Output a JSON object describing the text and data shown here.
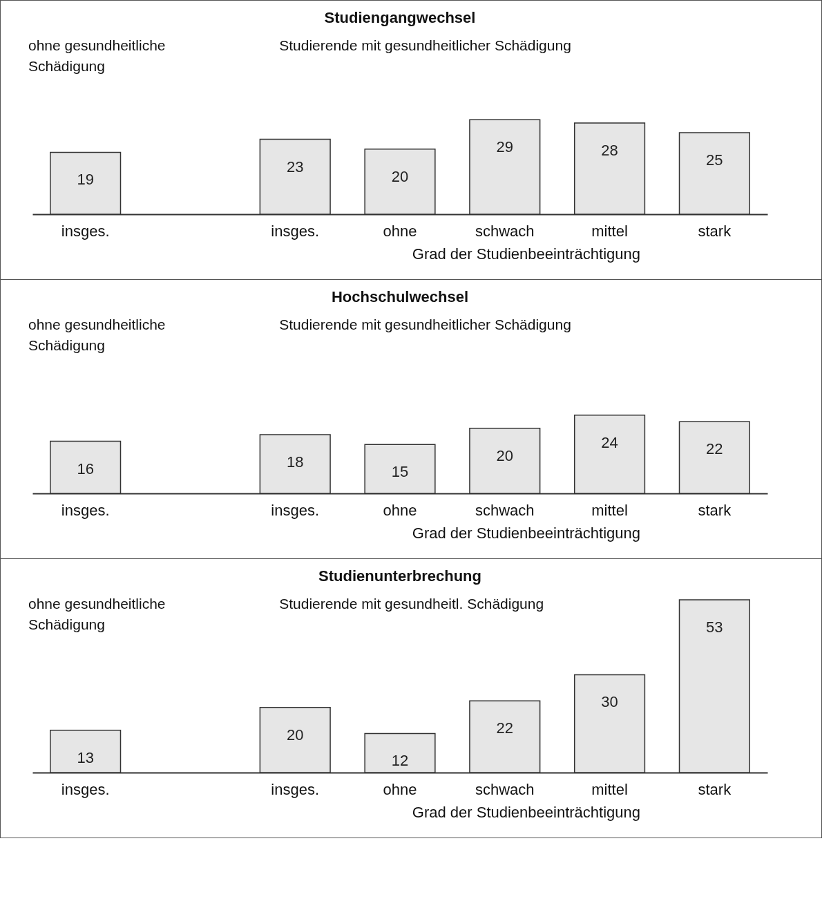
{
  "chart_data": [
    {
      "type": "bar",
      "title": "Studiengangwechsel",
      "xlabel": "Grad der Studienbeeinträchtigung",
      "annotations": [
        "ohne gesundheitliche\nSchädigung",
        "Studierende mit gesundheitlicher Schädigung"
      ],
      "categories": [
        "insges.",
        null,
        "insges.",
        "ohne",
        "schwach",
        "mittel",
        "stark"
      ],
      "values": [
        19,
        null,
        23,
        20,
        29,
        28,
        25
      ],
      "color": "#e6e6e6",
      "data_labels": true,
      "grid": false
    },
    {
      "type": "bar",
      "title": "Hochschulwechsel",
      "xlabel": "Grad der Studienbeeinträchtigung",
      "annotations": [
        "ohne gesundheitliche\nSchädigung",
        "Studierende mit gesundheitlicher Schädigung"
      ],
      "categories": [
        "insges.",
        null,
        "insges.",
        "ohne",
        "schwach",
        "mittel",
        "stark"
      ],
      "values": [
        16,
        null,
        18,
        15,
        20,
        24,
        22
      ],
      "color": "#e6e6e6",
      "data_labels": true,
      "grid": false
    },
    {
      "type": "bar",
      "title": "Studienunterbrechung",
      "xlabel": "Grad der Studienbeeinträchtigung",
      "annotations": [
        "ohne gesundheitliche\nSchädigung",
        "Studierende mit gesundheitl. Schädigung"
      ],
      "categories": [
        "insges.",
        null,
        "insges.",
        "ohne",
        "schwach",
        "mittel",
        "stark"
      ],
      "values": [
        13,
        null,
        20,
        12,
        22,
        30,
        53
      ],
      "color": "#e6e6e6",
      "data_labels": true,
      "grid": false
    }
  ]
}
